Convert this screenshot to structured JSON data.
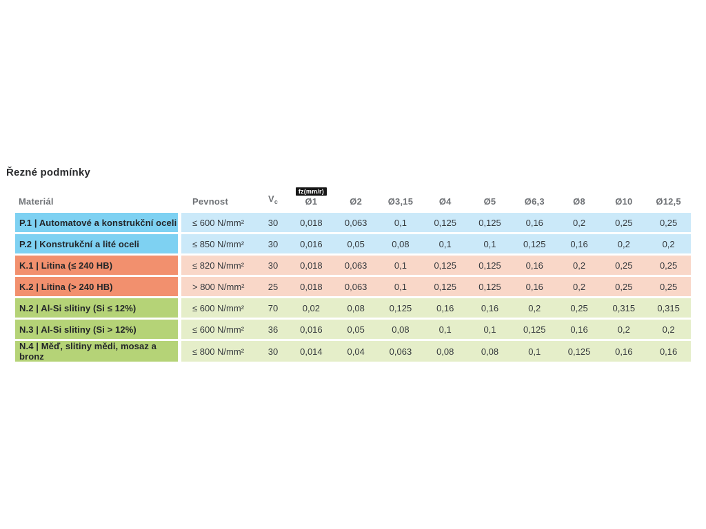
{
  "page": {
    "title": "Řezné podmínky"
  },
  "table": {
    "fz_badge": "fz(mm/r)",
    "headers": {
      "material": "Materiál",
      "pevnost": "Pevnost",
      "vc_main": "V",
      "vc_sub": "c",
      "diameters": [
        "Ø1",
        "Ø2",
        "Ø3,15",
        "Ø4",
        "Ø5",
        "Ø6,3",
        "Ø8",
        "Ø10",
        "Ø12,5"
      ]
    },
    "colors": {
      "p_label": "#7ed1f2",
      "p_data": "#cbe9f9",
      "k_label": "#f2906e",
      "k_data": "#f9d7c8",
      "n_label": "#b5d377",
      "n_data": "#e5eec9",
      "badge_bg": "#161616",
      "header_text": "#6f7276"
    },
    "rows": [
      {
        "group": "p",
        "label": "P.1 | Automatové a konstrukční oceli",
        "pevnost": "≤ 600 N/mm²",
        "vc": "30",
        "fz": [
          "0,018",
          "0,063",
          "0,1",
          "0,125",
          "0,125",
          "0,16",
          "0,2",
          "0,25",
          "0,25"
        ]
      },
      {
        "group": "p",
        "label": "P.2 | Konstrukční a lité oceli",
        "pevnost": "≤ 850 N/mm²",
        "vc": "30",
        "fz": [
          "0,016",
          "0,05",
          "0,08",
          "0,1",
          "0,1",
          "0,125",
          "0,16",
          "0,2",
          "0,2"
        ]
      },
      {
        "group": "k",
        "label": "K.1 | Litina (≤ 240 HB)",
        "pevnost": "≤ 820 N/mm²",
        "vc": "30",
        "fz": [
          "0,018",
          "0,063",
          "0,1",
          "0,125",
          "0,125",
          "0,16",
          "0,2",
          "0,25",
          "0,25"
        ]
      },
      {
        "group": "k",
        "label": "K.2 | Litina (> 240 HB)",
        "pevnost": "> 800 N/mm²",
        "vc": "25",
        "fz": [
          "0,018",
          "0,063",
          "0,1",
          "0,125",
          "0,125",
          "0,16",
          "0,2",
          "0,25",
          "0,25"
        ]
      },
      {
        "group": "n",
        "label": "N.2 | Al-Si slitiny (Si ≤ 12%)",
        "pevnost": "≤ 600 N/mm²",
        "vc": "70",
        "fz": [
          "0,02",
          "0,08",
          "0,125",
          "0,16",
          "0,16",
          "0,2",
          "0,25",
          "0,315",
          "0,315"
        ]
      },
      {
        "group": "n",
        "label": "N.3 | Al-Si slitiny (Si > 12%)",
        "pevnost": "≤ 600 N/mm²",
        "vc": "36",
        "fz": [
          "0,016",
          "0,05",
          "0,08",
          "0,1",
          "0,1",
          "0,125",
          "0,16",
          "0,2",
          "0,2"
        ]
      },
      {
        "group": "n",
        "label": "N.4 | Měď, slitiny mědi, mosaz a bronz",
        "pevnost": "≤ 800 N/mm²",
        "vc": "30",
        "fz": [
          "0,014",
          "0,04",
          "0,063",
          "0,08",
          "0,08",
          "0,1",
          "0,125",
          "0,16",
          "0,16"
        ]
      }
    ]
  }
}
